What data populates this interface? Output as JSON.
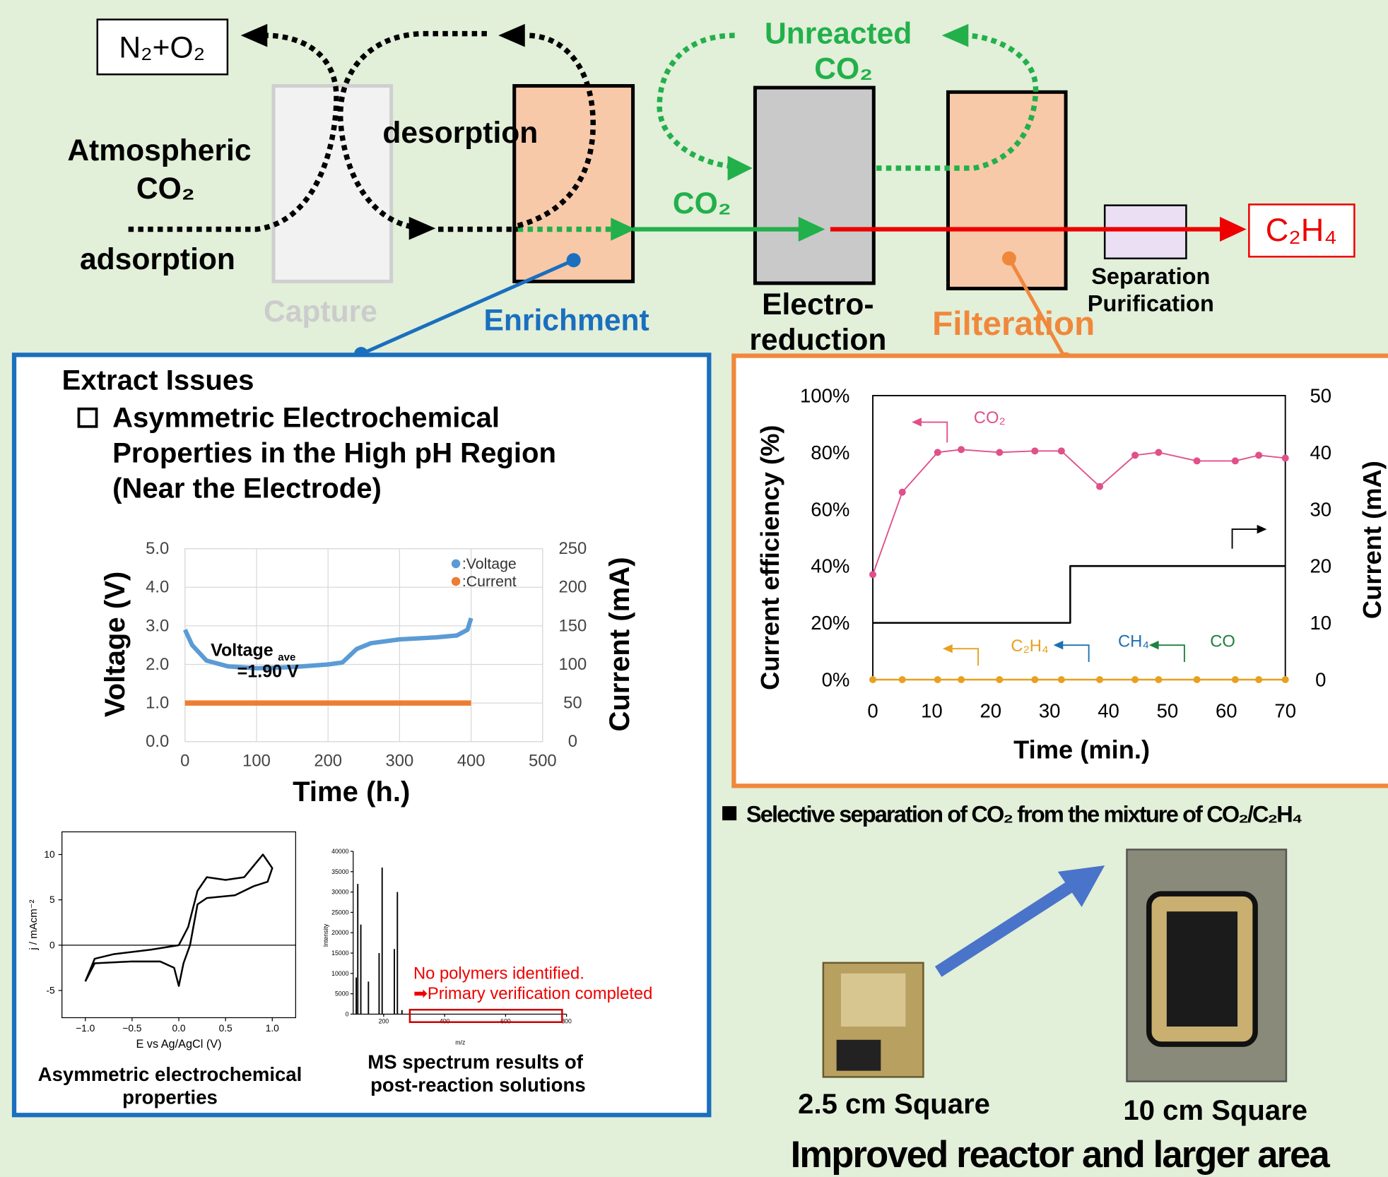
{
  "diagram": {
    "emissions": "N₂+O₂",
    "source": [
      "Atmospheric",
      "CO₂"
    ],
    "adsorption": "adsorption",
    "desorption": "desorption",
    "stages": {
      "capture": "Capture",
      "enrichment": "Enrichment",
      "electroreduction": [
        "Electro-",
        "reduction"
      ],
      "filtration": "Filteration",
      "separation": [
        "Separation",
        "Purification"
      ]
    },
    "flow_co2": "CO₂",
    "unreacted": [
      "Unreacted",
      "CO₂"
    ],
    "product": "C₂H₄"
  },
  "left_panel": {
    "heading": "Extract Issues",
    "issue": [
      "Asymmetric Electrochemical",
      "Properties in the High pH Region",
      "(Near the Electrode)"
    ],
    "voltage_chart": {
      "type": "line",
      "x_label": "Time (h.)",
      "y_label": "Voltage (V)",
      "y2_label": "Current (mA)",
      "xlim": [
        0,
        500
      ],
      "xticks": [
        0,
        100,
        200,
        300,
        400,
        500
      ],
      "ylim": [
        0,
        5
      ],
      "yticks": [
        {
          "value": 0,
          "label": "0.0"
        },
        {
          "value": 1,
          "label": "1.0"
        },
        {
          "value": 2,
          "label": "2.0"
        },
        {
          "value": 3,
          "label": "3.0"
        },
        {
          "value": 4,
          "label": "4.0"
        },
        {
          "value": 5,
          "label": "5.0"
        }
      ],
      "y2lim": [
        0,
        250
      ],
      "y2ticks": [
        0,
        50,
        100,
        150,
        200,
        250
      ],
      "grid": true,
      "annotation": {
        "text": "Voltage",
        "subscript": "ave",
        "value_text": "=1.90 V"
      },
      "series": [
        {
          "name": ":Voltage",
          "color": "#5b9bd5",
          "x": [
            0,
            10,
            30,
            60,
            100,
            150,
            200,
            220,
            240,
            260,
            300,
            350,
            380,
            395,
            400
          ],
          "values": [
            2.9,
            2.5,
            2.1,
            1.95,
            1.9,
            1.93,
            2.0,
            2.05,
            2.4,
            2.55,
            2.65,
            2.7,
            2.75,
            2.9,
            3.2
          ]
        },
        {
          "name": ":Current",
          "color": "#ed7d31",
          "axis": "y2",
          "x": [
            0,
            400
          ],
          "values": [
            50,
            50
          ]
        }
      ]
    },
    "cv_chart": {
      "type": "line",
      "x_label": "E vs Ag/AgCl (V)",
      "y_label": "j / mAcm⁻²",
      "caption": [
        "Asymmetric electrochemical",
        "properties"
      ],
      "xlim": [
        -1.25,
        1.25
      ],
      "xticks": [
        {
          "value": -1,
          "label": "−1.0"
        },
        {
          "value": -0.5,
          "label": "−0.5"
        },
        {
          "value": 0,
          "label": "0.0"
        },
        {
          "value": 0.5,
          "label": "0.5"
        },
        {
          "value": 1,
          "label": "1.0"
        }
      ],
      "ylim": [
        -8,
        12.5
      ],
      "yticks": [
        -5,
        0,
        5,
        10
      ],
      "series": [
        {
          "color": "#000000",
          "x": [
            -1,
            -0.9,
            -0.7,
            -0.3,
            0,
            0.1,
            0.2,
            0.3,
            0.5,
            0.7,
            0.9,
            1,
            0.95,
            0.8,
            0.6,
            0.3,
            0.2,
            0.12,
            0.05,
            0,
            -0.05,
            -0.2,
            -0.5,
            -0.9,
            -1
          ],
          "values": [
            -4,
            -1.5,
            -1,
            -0.5,
            0,
            2,
            6,
            7.5,
            7.2,
            7.5,
            10,
            8.5,
            7,
            6.5,
            5.5,
            5.2,
            4.5,
            0,
            -2,
            -4.5,
            -2.5,
            -1.8,
            -1.8,
            -2,
            -4
          ]
        }
      ]
    },
    "ms_chart": {
      "type": "bar",
      "x_label": "m/z",
      "y_label": "Intensity",
      "caption": [
        "MS spectrum results of",
        "post-reaction solutions"
      ],
      "xlim": [
        100,
        800
      ],
      "xticks": [
        200,
        400,
        600,
        800
      ],
      "ylim": [
        0,
        40000
      ],
      "yticks": [
        0,
        5000,
        10000,
        15000,
        20000,
        25000,
        30000,
        35000,
        40000
      ],
      "x": [
        110,
        115,
        125,
        150,
        185,
        195,
        235,
        245,
        260
      ],
      "values": [
        9000,
        32000,
        22000,
        8000,
        15000,
        36000,
        16000,
        30000,
        1000
      ],
      "color": "#000000",
      "annotation": [
        "No polymers identified.",
        "➡Primary verification completed"
      ]
    }
  },
  "right_panel": {
    "efficiency_chart": {
      "type": "line",
      "x_label": "Time (min.)",
      "y_label": "Current efficiency (%)",
      "y2_label": "Current (mA)",
      "xlim": [
        0,
        70
      ],
      "xticks": [
        0,
        10,
        20,
        30,
        40,
        50,
        60,
        70
      ],
      "ylim": [
        0,
        100
      ],
      "yticks": [
        {
          "value": 0,
          "label": "0%"
        },
        {
          "value": 20,
          "label": "20%"
        },
        {
          "value": 40,
          "label": "40%"
        },
        {
          "value": 60,
          "label": "60%"
        },
        {
          "value": 80,
          "label": "80%"
        },
        {
          "value": 100,
          "label": "100%"
        }
      ],
      "y2lim": [
        0,
        50
      ],
      "y2ticks": [
        0,
        10,
        20,
        30,
        40,
        50
      ],
      "series": [
        {
          "color": "#e0508a",
          "x": [
            0,
            5,
            11,
            15,
            21.5,
            27.5,
            32,
            38.5,
            44.5,
            48.5,
            55,
            61.5,
            65.5,
            70
          ],
          "values": [
            37,
            66,
            80,
            81,
            80,
            80.5,
            80.5,
            68,
            79,
            80,
            77,
            77,
            79,
            78
          ]
        },
        {
          "color": "#e8a020",
          "x": [
            0,
            5,
            11,
            15,
            21.5,
            27.5,
            32,
            38.5,
            44.5,
            48.5,
            55,
            61.5,
            65.5,
            70
          ],
          "values": [
            0,
            0,
            0,
            0,
            0,
            0,
            0,
            0,
            0,
            0,
            0,
            0,
            0,
            0
          ]
        },
        {
          "color": "#000000",
          "axis": "y2",
          "x": [
            0,
            33.5,
            33.5,
            70
          ],
          "values": [
            10,
            10,
            20,
            20
          ]
        }
      ],
      "annotations": [
        {
          "text": "CO₂",
          "color": "#e0508a"
        },
        {
          "text": "C₂H₄",
          "color": "#e8a020"
        },
        {
          "text": "CH₄",
          "color": "#2070b0"
        },
        {
          "text": "CO",
          "color": "#208040"
        }
      ]
    },
    "note": "Selective separation of CO₂ from the mixture of CO₂/C₂H₄"
  },
  "reactors": {
    "small": "2.5 cm Square",
    "large": "10 cm Square",
    "caption": "Improved reactor and larger area"
  }
}
